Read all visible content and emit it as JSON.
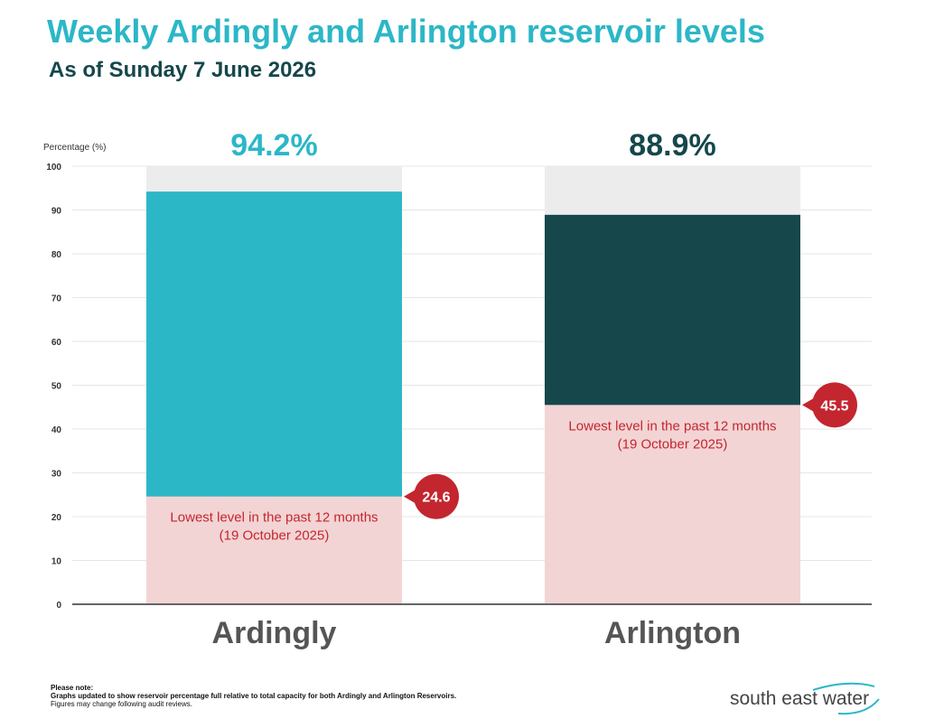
{
  "title": "Weekly Ardingly and Arlington reservoir levels",
  "subtitle": "As of Sunday 7 June 2026",
  "note": {
    "heading": "Please note:",
    "line1": "Graphs updated to show reservoir percentage full relative to total capacity for both Ardingly and Arlington Reservoirs.",
    "line2": "Figures may change following audit reviews."
  },
  "logo": {
    "text": "south east water"
  },
  "chart_data": {
    "type": "bar",
    "ylabel": "Percentage (%)",
    "ylim": [
      0,
      100
    ],
    "yticks": [
      0,
      10,
      20,
      30,
      40,
      50,
      60,
      70,
      80,
      90,
      100
    ],
    "grid": true,
    "categories": [
      "Ardingly",
      "Arlington"
    ],
    "values": [
      94.2,
      88.9
    ],
    "value_labels": [
      "94.2%",
      "88.9%"
    ],
    "lowest_values": [
      24.6,
      45.5
    ],
    "lowest_badges": [
      "24.6",
      "45.5"
    ],
    "lowest_annotation": [
      "Lowest level in the past 12 months",
      "(19 October 2025)"
    ],
    "colors": {
      "bars": [
        "#2cb7c7",
        "#15474b"
      ],
      "value_labels": [
        "#2cb7c7",
        "#15474b"
      ],
      "capacity_background": "#ececec",
      "lowest_region": "#f3d4d4",
      "lowest_text": "#c3262f",
      "badge": "#c3262f",
      "axis": "#666666",
      "grid": "#e6e6e6",
      "category_labels": "#555555"
    }
  }
}
